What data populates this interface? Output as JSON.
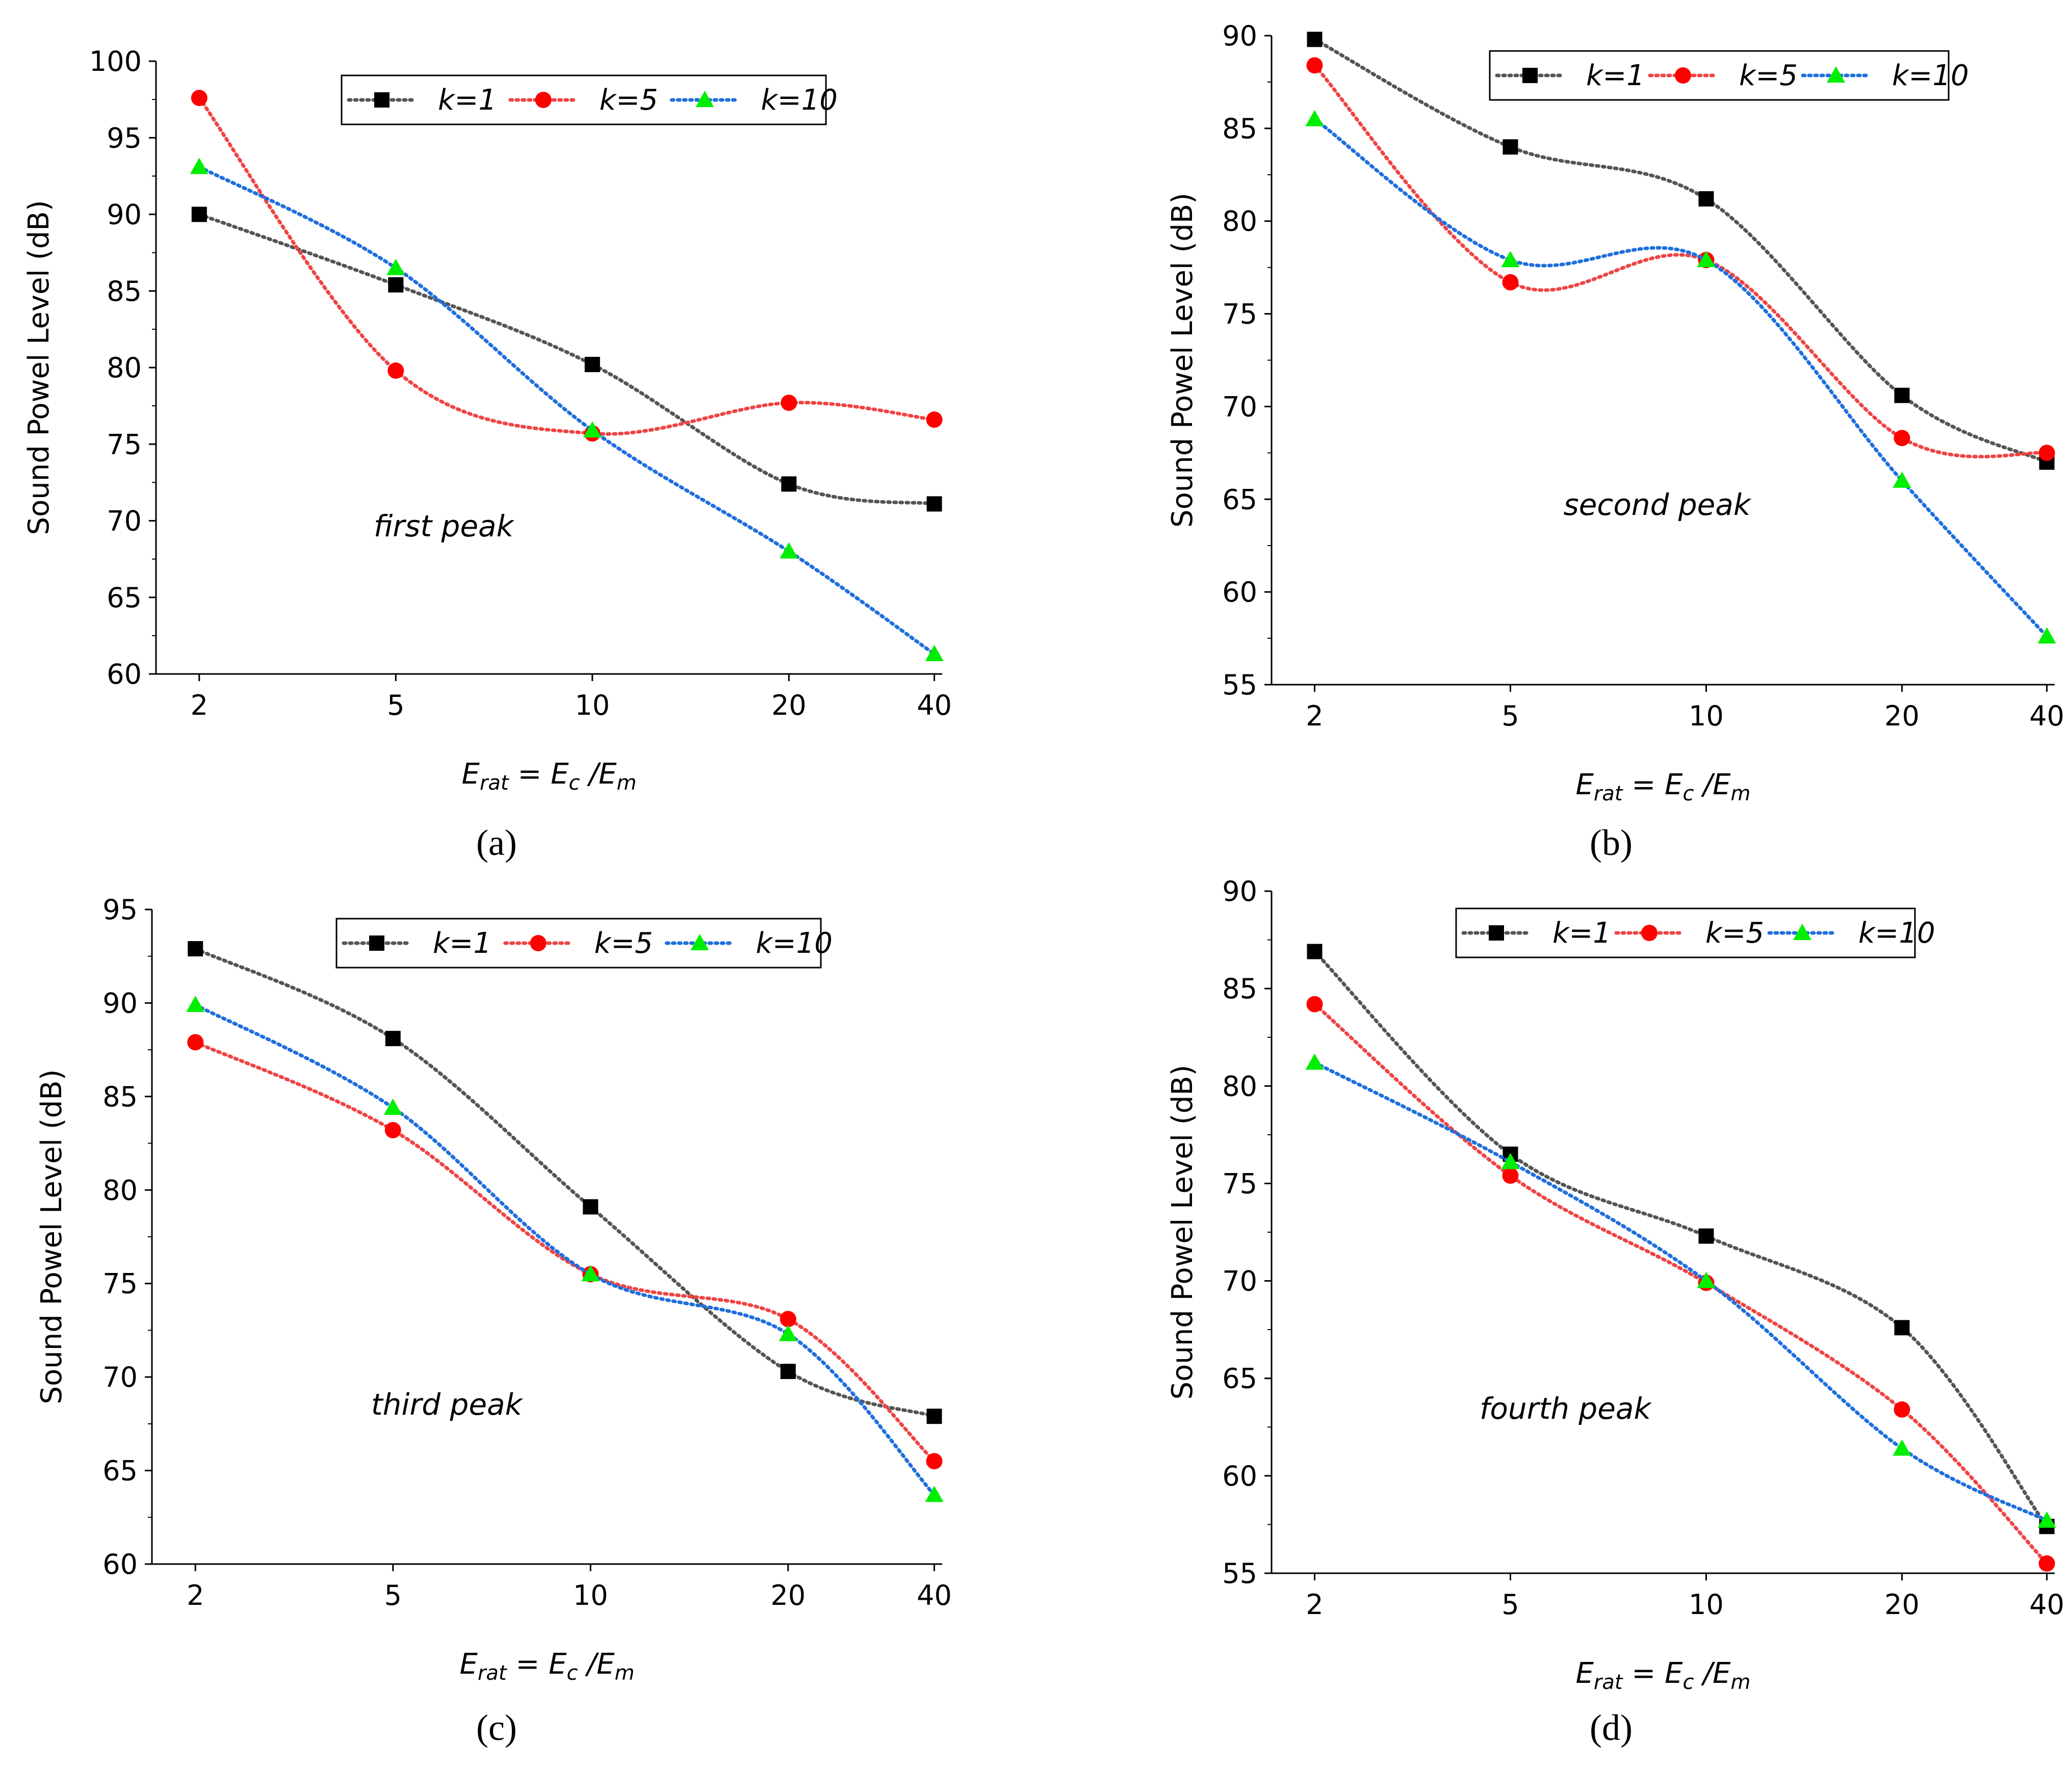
{
  "panels": [
    {
      "label": "(a)",
      "annotation": "first peak"
    },
    {
      "label": "(b)",
      "annotation": "second peak"
    },
    {
      "label": "(c)",
      "annotation": "third peak"
    },
    {
      "label": "(d)",
      "annotation": "fourth peak"
    }
  ],
  "chart_data": [
    {
      "type": "line",
      "title": "",
      "ylabel": "Sound Powel Level (dB)",
      "xlabel": {
        "main": "E",
        "main_sub": "rat",
        "eq": " = E",
        "eq_sub": "c",
        "slash": " /E",
        "slash_sub": "m"
      },
      "categories": [
        "2",
        "5",
        "10",
        "20",
        "40"
      ],
      "ylim": [
        60,
        100
      ],
      "yticks": [
        60,
        65,
        70,
        75,
        80,
        85,
        90,
        95,
        100
      ],
      "annotation": "first peak",
      "legend": "top-center",
      "series": [
        {
          "name": "k=1",
          "color": "#000000",
          "line_color": "#555555",
          "marker": "square",
          "values": [
            90.0,
            85.4,
            80.2,
            72.4,
            71.1
          ]
        },
        {
          "name": "k=5",
          "color": "#ff0000",
          "line_color": "#ef4444",
          "marker": "circle",
          "values": [
            97.6,
            79.8,
            75.7,
            77.7,
            76.6
          ]
        },
        {
          "name": "k=10",
          "color": "#00ee00",
          "line_color": "#1f6fdd",
          "marker": "triangle",
          "values": [
            93.1,
            86.5,
            75.9,
            68.0,
            61.3
          ]
        }
      ]
    },
    {
      "type": "line",
      "title": "",
      "ylabel": "Sound Powel Level (dB)",
      "xlabel": {
        "main": "E",
        "main_sub": "rat",
        "eq": " = E",
        "eq_sub": "c",
        "slash": " /E",
        "slash_sub": "m"
      },
      "categories": [
        "2",
        "5",
        "10",
        "20",
        "40"
      ],
      "ylim": [
        55,
        90
      ],
      "yticks": [
        55,
        60,
        65,
        70,
        75,
        80,
        85,
        90
      ],
      "annotation": "second peak",
      "legend": "top-center",
      "series": [
        {
          "name": "k=1",
          "color": "#000000",
          "line_color": "#555555",
          "marker": "square",
          "values": [
            89.8,
            84.0,
            81.2,
            70.6,
            67.0
          ]
        },
        {
          "name": "k=5",
          "color": "#ff0000",
          "line_color": "#ef4444",
          "marker": "circle",
          "values": [
            88.4,
            76.7,
            77.9,
            68.3,
            67.5
          ]
        },
        {
          "name": "k=10",
          "color": "#00ee00",
          "line_color": "#1f6fdd",
          "marker": "triangle",
          "values": [
            85.5,
            77.9,
            77.9,
            66.0,
            57.6
          ]
        }
      ]
    },
    {
      "type": "line",
      "title": "",
      "ylabel": "Sound Powel Level (dB)",
      "xlabel": {
        "main": "E",
        "main_sub": "rat",
        "eq": " = E",
        "eq_sub": "c",
        "slash": " /E",
        "slash_sub": "m"
      },
      "categories": [
        "2",
        "5",
        "10",
        "20",
        "40"
      ],
      "ylim": [
        60,
        95
      ],
      "yticks": [
        60,
        65,
        70,
        75,
        80,
        85,
        90,
        95
      ],
      "annotation": "third peak",
      "legend": "top-center",
      "series": [
        {
          "name": "k=1",
          "color": "#000000",
          "line_color": "#555555",
          "marker": "square",
          "values": [
            92.9,
            88.1,
            79.1,
            70.3,
            67.9
          ]
        },
        {
          "name": "k=5",
          "color": "#ff0000",
          "line_color": "#ef4444",
          "marker": "circle",
          "values": [
            87.9,
            83.2,
            75.5,
            73.1,
            65.5
          ]
        },
        {
          "name": "k=10",
          "color": "#00ee00",
          "line_color": "#1f6fdd",
          "marker": "triangle",
          "values": [
            89.9,
            84.4,
            75.5,
            72.3,
            63.7
          ]
        }
      ]
    },
    {
      "type": "line",
      "title": "",
      "ylabel": "Sound Powel Level (dB)",
      "xlabel": {
        "main": "E",
        "main_sub": "rat",
        "eq": " = E",
        "eq_sub": "c",
        "slash": " /E",
        "slash_sub": "m"
      },
      "categories": [
        "2",
        "5",
        "10",
        "20",
        "40"
      ],
      "ylim": [
        55,
        90
      ],
      "yticks": [
        55,
        60,
        65,
        70,
        75,
        80,
        85,
        90
      ],
      "annotation": "fourth peak",
      "legend": "top-center",
      "series": [
        {
          "name": "k=1",
          "color": "#000000",
          "line_color": "#555555",
          "marker": "square",
          "values": [
            86.9,
            76.5,
            72.3,
            67.6,
            57.4
          ]
        },
        {
          "name": "k=5",
          "color": "#ff0000",
          "line_color": "#ef4444",
          "marker": "circle",
          "values": [
            84.2,
            75.4,
            69.9,
            63.4,
            55.5
          ]
        },
        {
          "name": "k=10",
          "color": "#00ee00",
          "line_color": "#1f6fdd",
          "marker": "triangle",
          "values": [
            81.2,
            76.1,
            70.0,
            61.4,
            57.7
          ]
        }
      ]
    }
  ]
}
